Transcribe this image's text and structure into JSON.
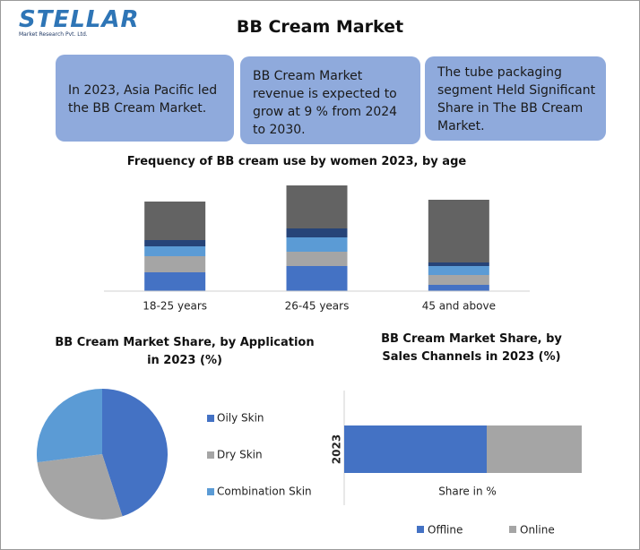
{
  "header": {
    "logo": "STELLAR",
    "logo_subtitle": "Market Research Pvt. Ltd.",
    "title": "BB Cream Market"
  },
  "callouts": [
    "In 2023, Asia Pacific led the BB Cream Market.",
    "BB Cream Market revenue is expected to grow at 9 % from 2024 to 2030.",
    "The tube packaging segment Held Significant Share in The BB Cream Market."
  ],
  "chart_data": [
    {
      "type": "bar",
      "stacked": true,
      "title": "Frequency of BB cream use by women 2023, by age",
      "categories": [
        "18-25 years",
        "26-45 years",
        "45 and above"
      ],
      "ylim": [
        0,
        120
      ],
      "series": [
        {
          "color": "#4472c4",
          "values": [
            21,
            28,
            7
          ]
        },
        {
          "color": "#a5a5a5",
          "values": [
            18,
            16,
            11
          ]
        },
        {
          "color": "#5b9bd5",
          "values": [
            11,
            16,
            10
          ]
        },
        {
          "color": "#264478",
          "values": [
            7,
            10,
            4
          ]
        },
        {
          "color": "#636363",
          "values": [
            43,
            48,
            70
          ]
        }
      ]
    },
    {
      "type": "pie",
      "title": "BB Cream Market Share, by Application in 2023 (%)",
      "categories": [
        "Oily Skin",
        "Dry Skin",
        "Combination Skin"
      ],
      "values": [
        45,
        28,
        27
      ],
      "colors": [
        "#4472c4",
        "#a5a5a5",
        "#5b9bd5"
      ],
      "legend": "right"
    },
    {
      "type": "bar",
      "orientation": "horizontal",
      "stacked": true,
      "title": "BB Cream Market Share, by Sales Channels in 2023 (%)",
      "categories": [
        "2023"
      ],
      "xlabel": "Share in %",
      "xlim": [
        0,
        100
      ],
      "legend": "bottom",
      "series": [
        {
          "name": "Offline",
          "color": "#4472c4",
          "values": [
            60
          ]
        },
        {
          "name": "Online",
          "color": "#a5a5a5",
          "values": [
            40
          ]
        }
      ]
    }
  ]
}
